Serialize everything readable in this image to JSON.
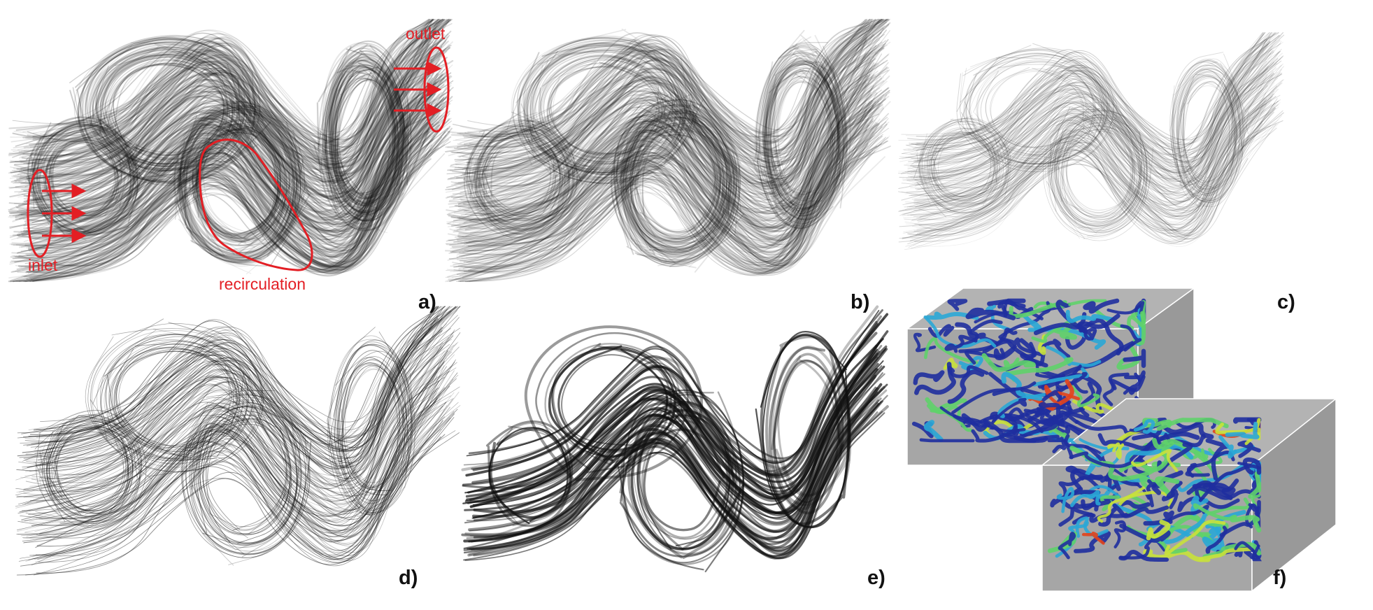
{
  "figure": {
    "panels": [
      {
        "id": "a",
        "label": "a)",
        "style": "dense-gray"
      },
      {
        "id": "b",
        "label": "b)",
        "style": "dense-gray"
      },
      {
        "id": "c",
        "label": "c)",
        "style": "light-gray"
      },
      {
        "id": "d",
        "label": "d)",
        "style": "thin-black"
      },
      {
        "id": "e",
        "label": "e)",
        "style": "bold-bundles"
      },
      {
        "id": "f",
        "label": "f)",
        "style": "colored-3d-boxes"
      }
    ],
    "annotations": {
      "outlet": "outlet",
      "inlet": "inlet",
      "recirculation": "recirculation"
    },
    "colors": {
      "annotation": "#e31e24",
      "box_fill": "#a6a6a6",
      "streamline_dark": "#1a1a1a",
      "colormap": [
        "#1f2f9e",
        "#2aa7d6",
        "#5fd16a",
        "#c9e23a",
        "#e3421b"
      ]
    }
  }
}
